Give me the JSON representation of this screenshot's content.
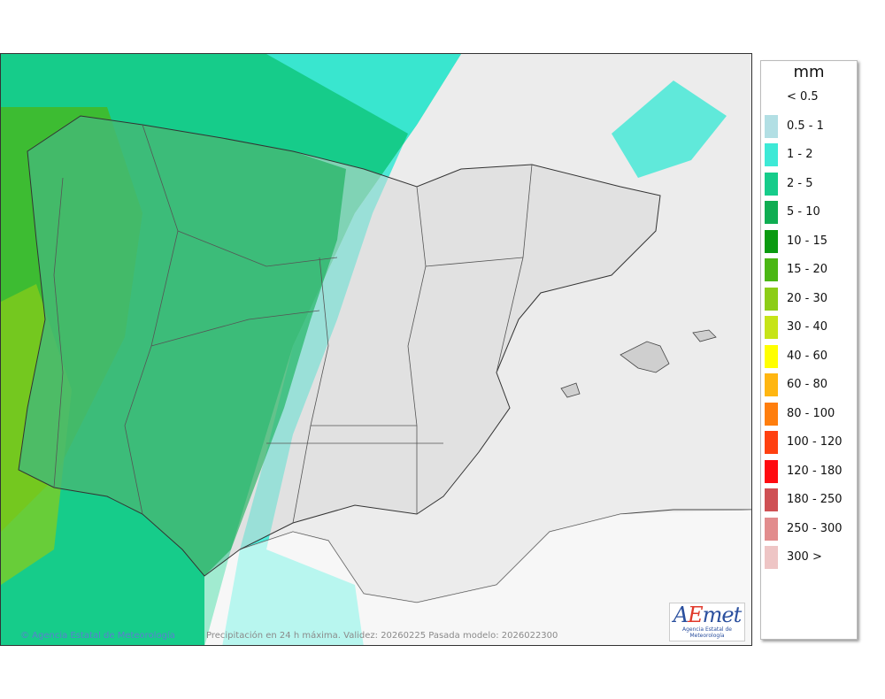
{
  "legend": {
    "title": "mm",
    "items": [
      {
        "label": "< 0.5",
        "color": ""
      },
      {
        "label": "0.5 - 1",
        "color": "#b2dfe4"
      },
      {
        "label": "1 - 2",
        "color": "#3de9d6"
      },
      {
        "label": "2 - 5",
        "color": "#16cc8a"
      },
      {
        "label": "5 - 10",
        "color": "#0fad52"
      },
      {
        "label": "10 - 15",
        "color": "#0a9a10"
      },
      {
        "label": "15 - 20",
        "color": "#4bb714"
      },
      {
        "label": "20 - 30",
        "color": "#8ccd17"
      },
      {
        "label": "30 - 40",
        "color": "#c6e418"
      },
      {
        "label": "40 - 60",
        "color": "#ffff00"
      },
      {
        "label": "60 - 80",
        "color": "#ffb611"
      },
      {
        "label": "80 - 100",
        "color": "#ff7e0d"
      },
      {
        "label": "100 - 120",
        "color": "#ff4010"
      },
      {
        "label": "120 - 180",
        "color": "#ff0a10"
      },
      {
        "label": "180 - 250",
        "color": "#cf5054"
      },
      {
        "label": "250 - 300",
        "color": "#e28c8d"
      },
      {
        "label": "300 >",
        "color": "#eec5c5"
      }
    ]
  },
  "map": {
    "credit": "© Agencia Estatal de Meteorología",
    "footer": "Precipitación en 24 h máxima. Validez: 20260225 Pasada modelo: 2026022300",
    "logo_text": "AEmet",
    "logo_subtitle": "Agencia Estatal de Meteorología"
  }
}
